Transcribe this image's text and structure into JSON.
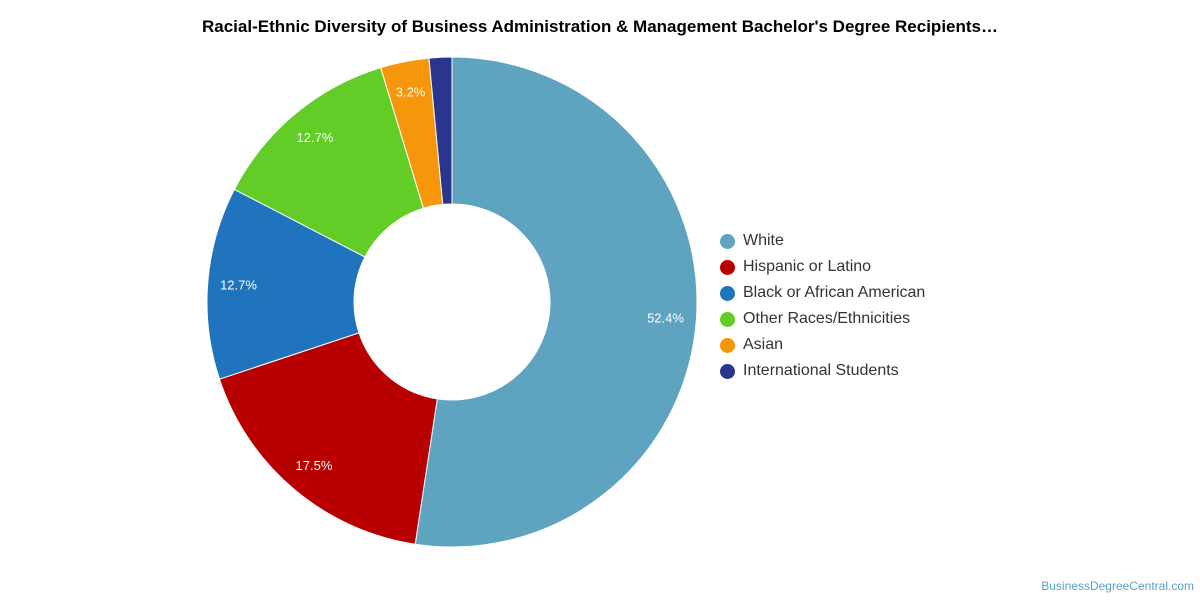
{
  "chart_data": {
    "type": "pie",
    "title": "Racial-Ethnic Diversity of Business Administration & Management Bachelor's Degree Recipients…",
    "donut": true,
    "legend_position": "right",
    "categories": [
      "White",
      "Hispanic or Latino",
      "Black or African American",
      "Other Races/Ethnicities",
      "Asian",
      "International Students"
    ],
    "values": [
      52.4,
      17.5,
      12.7,
      12.7,
      3.2,
      1.5
    ],
    "data_labels": [
      "52.4%",
      "17.5%",
      "12.7%",
      "12.7%",
      "3.2%",
      ""
    ],
    "colors": [
      "#5ea3c0",
      "#b80000",
      "#1f74bd",
      "#62cd27",
      "#f6960a",
      "#2a358d"
    ]
  },
  "watermark": "BusinessDegreeCentral.com"
}
